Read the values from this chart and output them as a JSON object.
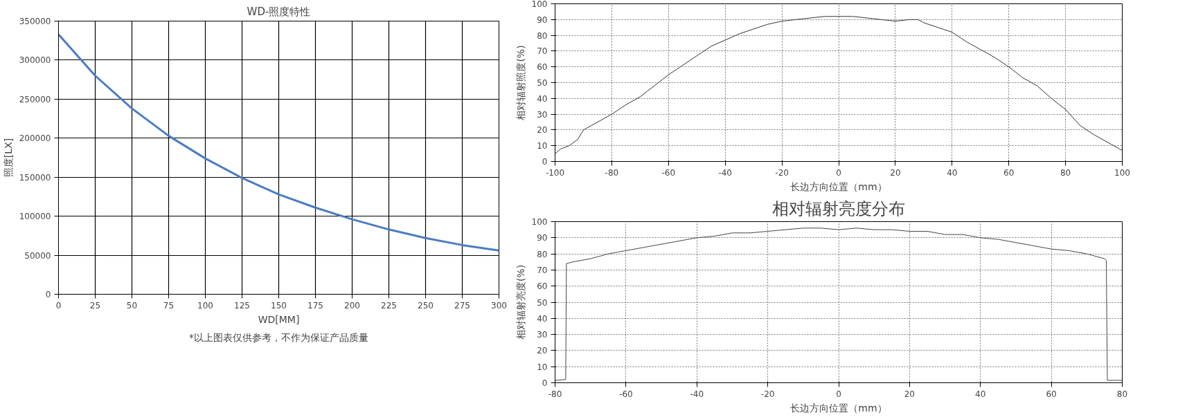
{
  "chart_data": [
    {
      "type": "line",
      "title": "WD-照度特性",
      "xlabel": "WD[MM]",
      "ylabel": "照度[LX]",
      "annotations": [
        "*以上图表仅供参考，不作为保证产品质量"
      ],
      "x": [
        0,
        25,
        50,
        75,
        100,
        125,
        150,
        175,
        200,
        225,
        250,
        275,
        300
      ],
      "series": [
        {
          "color": "#4a7cc2",
          "values": [
            333000,
            280000,
            238000,
            203000,
            174000,
            149000,
            128000,
            111000,
            96000,
            83000,
            72000,
            63000,
            56000
          ]
        }
      ],
      "xlim": [
        0,
        300
      ],
      "ylim": [
        0,
        350000
      ],
      "xticks": [
        0,
        25,
        50,
        75,
        100,
        125,
        150,
        175,
        200,
        225,
        250,
        275,
        300
      ],
      "yticks": [
        0,
        50000,
        100000,
        150000,
        200000,
        250000,
        300000,
        350000
      ],
      "grid": true,
      "marker": "none"
    },
    {
      "type": "line",
      "xlabel": "长边方向位置（mm）",
      "ylabel": "相对辐射照度(%)",
      "x": [
        -100,
        -98,
        -95,
        -92,
        -90,
        -85,
        -80,
        -75,
        -70,
        -65,
        -60,
        -55,
        -50,
        -45,
        -40,
        -35,
        -30,
        -25,
        -20,
        -15,
        -10,
        -5,
        0,
        5,
        10,
        15,
        20,
        25,
        28,
        30,
        35,
        40,
        45,
        50,
        55,
        60,
        65,
        70,
        75,
        80,
        85,
        90,
        95,
        100
      ],
      "series": [
        {
          "color": "#333333",
          "values": [
            5,
            8,
            10,
            14,
            20,
            25,
            30,
            36,
            41,
            48,
            55,
            61,
            67,
            73,
            77,
            81,
            84,
            87,
            89,
            90,
            91,
            92,
            92,
            92,
            91,
            90,
            89,
            90,
            90,
            88,
            85,
            82,
            76,
            71,
            66,
            60,
            53,
            48,
            40,
            33,
            23,
            17,
            12,
            7
          ]
        }
      ],
      "xlim": [
        -100,
        100
      ],
      "ylim": [
        0,
        100
      ],
      "xticks": [
        -100,
        -80,
        -60,
        -40,
        -20,
        0,
        20,
        40,
        60,
        80,
        100
      ],
      "yticks": [
        0,
        10,
        20,
        30,
        40,
        50,
        60,
        70,
        80,
        90,
        100
      ],
      "grid": true,
      "marker": "none"
    },
    {
      "type": "line",
      "title": "相对辐射亮度分布",
      "xlabel": "长边方向位置（mm）",
      "ylabel": "相对辐射亮度(%)",
      "x": [
        -80,
        -77,
        -76.8,
        -75,
        -70,
        -65,
        -60,
        -55,
        -50,
        -45,
        -40,
        -35,
        -30,
        -25,
        -20,
        -15,
        -10,
        -5,
        0,
        5,
        10,
        15,
        20,
        25,
        30,
        35,
        40,
        45,
        50,
        55,
        60,
        65,
        70,
        75,
        75.5,
        75.8,
        78,
        80
      ],
      "series": [
        {
          "color": "#444444",
          "values": [
            1.5,
            2,
            74,
            75,
            77,
            80,
            82,
            84,
            86,
            88,
            90,
            91,
            93,
            93,
            94,
            95,
            96,
            96,
            95,
            96,
            95,
            95,
            94,
            94,
            92,
            92,
            90,
            89,
            87,
            85,
            83,
            82,
            80,
            77,
            76,
            1.5,
            1.5,
            1.5
          ]
        }
      ],
      "xlim": [
        -80,
        80
      ],
      "ylim": [
        0,
        100
      ],
      "xticks": [
        -80,
        -60,
        -40,
        -20,
        0,
        20,
        40,
        60,
        80
      ],
      "yticks": [
        0,
        10,
        20,
        30,
        40,
        50,
        60,
        70,
        80,
        90,
        100
      ],
      "grid": true,
      "marker": "none"
    }
  ]
}
